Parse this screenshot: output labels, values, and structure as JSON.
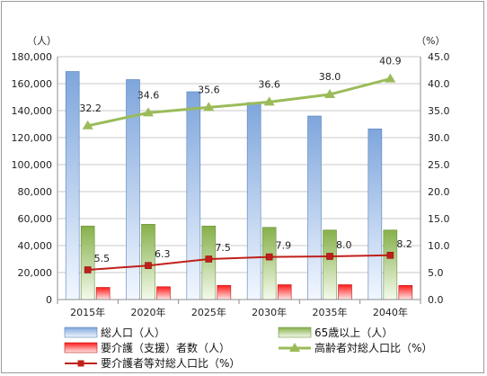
{
  "chart_data": {
    "type": "bar",
    "categories": [
      "2015年",
      "2020年",
      "2025年",
      "2030年",
      "2035年",
      "2040年"
    ],
    "left_axis": {
      "unit": "（人）",
      "ylim": [
        0,
        180000
      ],
      "ticks": [
        "0",
        "20,000",
        "40,000",
        "60,000",
        "80,000",
        "100,000",
        "120,000",
        "140,000",
        "160,000",
        "180,000"
      ]
    },
    "right_axis": {
      "unit": "（%）",
      "ylim": [
        0,
        45
      ],
      "ticks": [
        "0.0",
        "5.0",
        "10.0",
        "15.0",
        "20.0",
        "25.0",
        "30.0",
        "35.0",
        "40.0",
        "45.0"
      ]
    },
    "grid": true,
    "series": [
      {
        "name": "総人口（人）",
        "kind": "bar",
        "axis": "left",
        "color": "#8eb4e3",
        "values": [
          169000,
          163000,
          154000,
          146000,
          136000,
          126500
        ]
      },
      {
        "name": "65歳以上（人）",
        "kind": "bar",
        "axis": "left",
        "color": "#9bbb59",
        "values": [
          54500,
          55800,
          54500,
          53500,
          51500,
          51500
        ]
      },
      {
        "name": "要介護（支援）者数（人）",
        "kind": "bar",
        "axis": "left",
        "color": "#ff2020",
        "values": [
          9000,
          9500,
          10500,
          11000,
          11000,
          10500
        ]
      },
      {
        "name": "高齢者対総人口比（%）",
        "kind": "line",
        "axis": "right",
        "color": "#9bbb59",
        "marker": "triangle",
        "values": [
          32.2,
          34.6,
          35.6,
          36.6,
          38.0,
          40.9
        ],
        "labels": [
          "32.2",
          "34.6",
          "35.6",
          "36.6",
          "38.0",
          "40.9"
        ]
      },
      {
        "name": "要介護者等対総人口比（%）",
        "kind": "line",
        "axis": "right",
        "color": "#c0201a",
        "marker": "square",
        "values": [
          5.5,
          6.3,
          7.5,
          7.9,
          8.0,
          8.2
        ],
        "labels": [
          "5.5",
          "6.3",
          "7.5",
          "7.9",
          "8.0",
          "8.2"
        ]
      }
    ],
    "legend_position": "bottom"
  }
}
